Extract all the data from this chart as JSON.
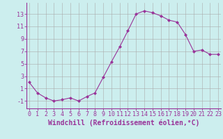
{
  "x": [
    0,
    1,
    2,
    3,
    4,
    5,
    6,
    7,
    8,
    9,
    10,
    11,
    12,
    13,
    14,
    15,
    16,
    17,
    18,
    19,
    20,
    21,
    22,
    23
  ],
  "y": [
    2.0,
    0.3,
    -0.5,
    -1.0,
    -0.8,
    -0.5,
    -1.0,
    -0.3,
    0.3,
    2.8,
    5.3,
    7.7,
    10.3,
    13.0,
    13.5,
    13.2,
    12.7,
    12.0,
    11.7,
    9.7,
    7.0,
    7.2,
    6.5,
    6.5
  ],
  "line_color": "#993399",
  "marker": "D",
  "marker_size": 2.0,
  "bg_color": "#cceeee",
  "grid_color": "#aaaaaa",
  "xlabel": "Windchill (Refroidissement éolien,°C)",
  "xlabel_color": "#993399",
  "ylabel_ticks": [
    -1,
    1,
    3,
    5,
    7,
    9,
    11,
    13
  ],
  "xticks": [
    0,
    1,
    2,
    3,
    4,
    5,
    6,
    7,
    8,
    9,
    10,
    11,
    12,
    13,
    14,
    15,
    16,
    17,
    18,
    19,
    20,
    21,
    22,
    23
  ],
  "ylim": [
    -2.2,
    14.8
  ],
  "xlim": [
    -0.3,
    23.3
  ],
  "tick_fontsize": 6.0,
  "xlabel_fontsize": 7.0,
  "lw": 0.8
}
